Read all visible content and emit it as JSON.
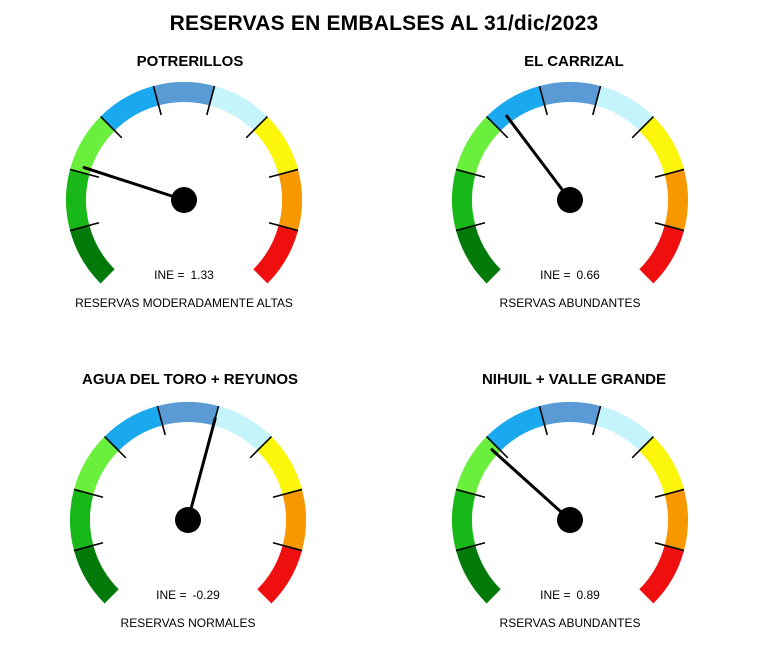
{
  "title": "RESERVAS EN EMBALSES AL 31/dic/2023",
  "colors": {
    "needle": "#000000",
    "tick": "#000000",
    "bands": [
      "#047a0b",
      "#17b817",
      "#6bef3d",
      "#1aa8ef",
      "#5b9bd5",
      "#c5f4fb",
      "#fbf60a",
      "#f79800",
      "#f00f0f"
    ]
  },
  "chart_data": [
    {
      "type": "gauge",
      "title": "POTRERILLOS",
      "ine_label": "INE =",
      "ine_text": "1.33",
      "value": 1.33,
      "category": "RESERVAS MODERADAMENTE ALTAS",
      "needle_angle_deg": 162
    },
    {
      "type": "gauge",
      "title": "EL CARRIZAL",
      "ine_label": "INE =",
      "ine_text": "0.66",
      "value": 0.66,
      "category": "RSERVAS ABUNDANTES",
      "needle_angle_deg": 127
    },
    {
      "type": "gauge",
      "title": "AGUA DEL TORO + REYUNOS",
      "ine_label": "INE =",
      "ine_text": "-0.29",
      "value": -0.29,
      "category": "RESERVAS NORMALES",
      "needle_angle_deg": 75
    },
    {
      "type": "gauge",
      "title": "NIHUIL + VALLE GRANDE",
      "ine_label": "INE =",
      "ine_text": "0.89",
      "value": 0.89,
      "category": "RSERVAS ABUNDANTES",
      "needle_angle_deg": 138
    }
  ]
}
